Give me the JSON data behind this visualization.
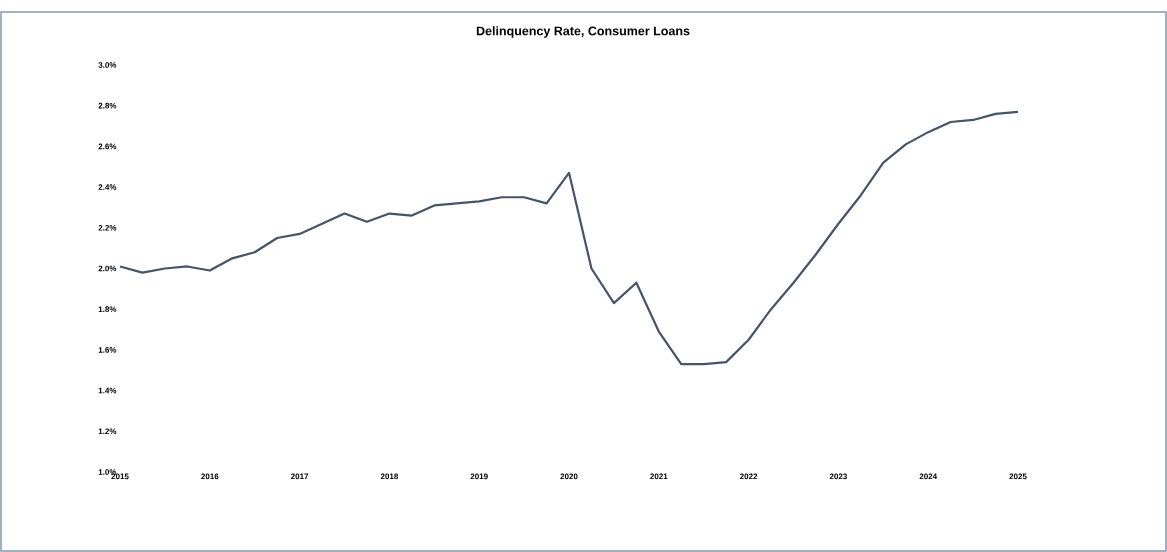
{
  "chart_data": {
    "type": "line",
    "title": "Delinquency Rate, Consumer Loans",
    "x": [
      2015,
      2015.25,
      2015.5,
      2015.75,
      2016,
      2016.25,
      2016.5,
      2016.75,
      2017,
      2017.25,
      2017.5,
      2017.75,
      2018,
      2018.25,
      2018.5,
      2018.75,
      2019,
      2019.25,
      2019.5,
      2019.75,
      2020,
      2020.25,
      2020.5,
      2020.75,
      2021,
      2021.25,
      2021.5,
      2021.75,
      2022,
      2022.25,
      2022.5,
      2022.75,
      2023,
      2023.25,
      2023.5,
      2023.75,
      2024,
      2024.25,
      2024.5,
      2024.75,
      2025
    ],
    "values": [
      2.01,
      1.98,
      2.0,
      2.01,
      1.99,
      2.05,
      2.08,
      2.15,
      2.17,
      2.22,
      2.27,
      2.23,
      2.27,
      2.26,
      2.31,
      2.32,
      2.33,
      2.35,
      2.35,
      2.32,
      2.47,
      2.0,
      1.83,
      1.93,
      1.69,
      1.53,
      1.53,
      1.54,
      1.65,
      1.8,
      1.93,
      2.07,
      2.22,
      2.36,
      2.52,
      2.61,
      2.67,
      2.72,
      2.73,
      2.76,
      2.77
    ],
    "color": "#44546a",
    "xlim": [
      2015,
      2025
    ],
    "xticks": [
      2015,
      2016,
      2017,
      2018,
      2019,
      2020,
      2021,
      2022,
      2023,
      2024,
      2025
    ],
    "ylim": [
      1.0,
      3.0
    ],
    "yticks": [
      {
        "value": 1.0,
        "label": "1.0%"
      },
      {
        "value": 1.2,
        "label": "1.2%"
      },
      {
        "value": 1.4,
        "label": "1.4%"
      },
      {
        "value": 1.6,
        "label": "1.6%"
      },
      {
        "value": 1.8,
        "label": "1.8%"
      },
      {
        "value": 2.0,
        "label": "2.0%"
      },
      {
        "value": 2.2,
        "label": "2.2%"
      },
      {
        "value": 2.4,
        "label": "2.4%"
      },
      {
        "value": 2.6,
        "label": "2.6%"
      },
      {
        "value": 2.8,
        "label": "2.8%"
      },
      {
        "value": 3.0,
        "label": "3.0%"
      }
    ],
    "grid": false,
    "marker": "none",
    "line_style": "solid"
  }
}
